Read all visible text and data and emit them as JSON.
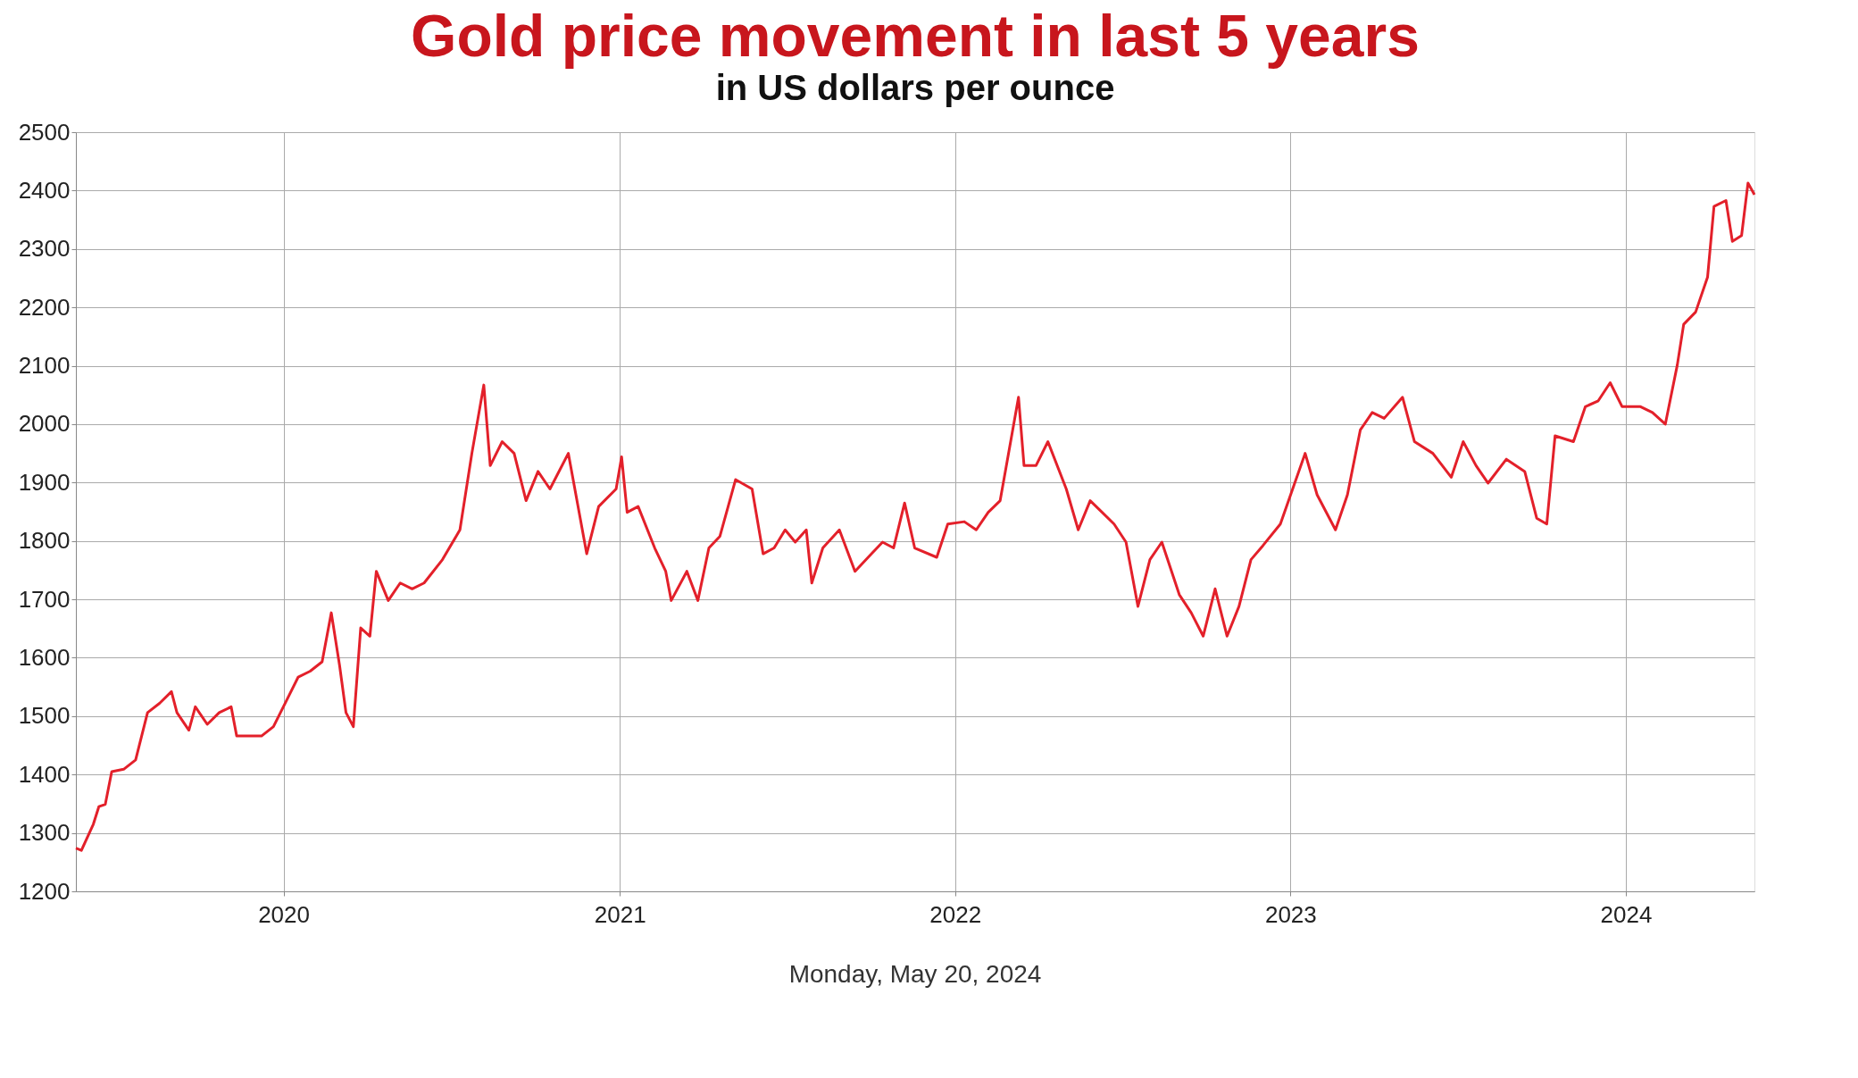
{
  "chart_data": {
    "type": "line",
    "title": "Gold price movement in last 5 years",
    "subtitle": "in US dollars per ounce",
    "annotations": [
      "Monday, May 20, 2024"
    ],
    "x": [
      "2019-05-20",
      "2019-05-26",
      "2019-06-08",
      "2019-06-14",
      "2019-06-21",
      "2019-06-28",
      "2019-07-11",
      "2019-07-24",
      "2019-08-06",
      "2019-08-19",
      "2019-09-01",
      "2019-09-07",
      "2019-09-20",
      "2019-09-27",
      "2019-10-10",
      "2019-10-23",
      "2019-11-05",
      "2019-11-11",
      "2019-12-08",
      "2019-12-21",
      "2020-01-04",
      "2020-01-17",
      "2020-01-30",
      "2020-02-12",
      "2020-02-22",
      "2020-03-02",
      "2020-03-09",
      "2020-03-17",
      "2020-03-25",
      "2020-04-04",
      "2020-04-11",
      "2020-04-24",
      "2020-05-07",
      "2020-05-20",
      "2020-06-02",
      "2020-06-22",
      "2020-07-11",
      "2020-07-24",
      "2020-08-06",
      "2020-08-13",
      "2020-08-26",
      "2020-09-08",
      "2020-09-21",
      "2020-10-04",
      "2020-10-17",
      "2020-11-06",
      "2020-11-26",
      "2020-12-09",
      "2020-12-28",
      "2021-01-03",
      "2021-01-09",
      "2021-01-21",
      "2021-02-08",
      "2021-02-20",
      "2021-02-26",
      "2021-03-15",
      "2021-03-27",
      "2021-04-08",
      "2021-04-20",
      "2021-05-07",
      "2021-05-25",
      "2021-06-06",
      "2021-06-18",
      "2021-06-30",
      "2021-07-11",
      "2021-07-23",
      "2021-07-29",
      "2021-08-10",
      "2021-08-28",
      "2021-09-14",
      "2021-10-02",
      "2021-10-14",
      "2021-10-26",
      "2021-11-07",
      "2021-11-18",
      "2021-12-12",
      "2021-12-24",
      "2022-01-11",
      "2022-01-24",
      "2022-02-06",
      "2022-02-19",
      "2022-03-11",
      "2022-03-17",
      "2022-03-30",
      "2022-04-12",
      "2022-05-02",
      "2022-05-15",
      "2022-05-28",
      "2022-06-10",
      "2022-06-23",
      "2022-07-06",
      "2022-07-19",
      "2022-08-01",
      "2022-08-14",
      "2022-09-02",
      "2022-09-15",
      "2022-09-28",
      "2022-10-11",
      "2022-10-24",
      "2022-11-06",
      "2022-11-19",
      "2022-12-02",
      "2022-12-21",
      "2023-01-17",
      "2023-01-30",
      "2023-02-19",
      "2023-03-04",
      "2023-03-18",
      "2023-03-31",
      "2023-04-13",
      "2023-05-03",
      "2023-05-16",
      "2023-06-05",
      "2023-06-25",
      "2023-07-08",
      "2023-07-22",
      "2023-08-04",
      "2023-08-24",
      "2023-09-13",
      "2023-09-26",
      "2023-10-07",
      "2023-10-16",
      "2023-11-05",
      "2023-11-18",
      "2023-12-02",
      "2023-12-15",
      "2023-12-28",
      "2024-01-17",
      "2024-01-30",
      "2024-02-13",
      "2024-02-26",
      "2024-03-04",
      "2024-03-17",
      "2024-03-30",
      "2024-04-06",
      "2024-04-19",
      "2024-04-26",
      "2024-05-06",
      "2024-05-13",
      "2024-05-20"
    ],
    "series": [
      {
        "color": "#e3202a",
        "values": [
          1274,
          1270,
          1315,
          1345,
          1349,
          1405,
          1409,
          1425,
          1506,
          1522,
          1542,
          1506,
          1476,
          1516,
          1486,
          1506,
          1516,
          1466,
          1466,
          1482,
          1526,
          1567,
          1577,
          1593,
          1677,
          1587,
          1506,
          1482,
          1651,
          1637,
          1748,
          1698,
          1728,
          1718,
          1728,
          1768,
          1819,
          1950,
          2067,
          1929,
          1970,
          1950,
          1869,
          1919,
          1889,
          1950,
          1778,
          1859,
          1889,
          1944,
          1849,
          1859,
          1788,
          1748,
          1698,
          1748,
          1698,
          1788,
          1808,
          1905,
          1889,
          1778,
          1788,
          1819,
          1798,
          1819,
          1728,
          1788,
          1819,
          1748,
          1778,
          1798,
          1788,
          1865,
          1788,
          1772,
          1829,
          1833,
          1819,
          1849,
          1869,
          2046,
          1929,
          1929,
          1970,
          1889,
          1819,
          1869,
          1849,
          1829,
          1798,
          1688,
          1768,
          1798,
          1708,
          1677,
          1637,
          1718,
          1637,
          1688,
          1768,
          1792,
          1829,
          1950,
          1879,
          1819,
          1879,
          1990,
          2020,
          2010,
          2046,
          1970,
          1950,
          1909,
          1970,
          1929,
          1899,
          1940,
          1919,
          1839,
          1829,
          1980,
          1970,
          2030,
          2040,
          2071,
          2030,
          2030,
          2020,
          2000,
          2101,
          2171,
          2192,
          2252,
          2373,
          2383,
          2313,
          2323,
          2413,
          2393
        ]
      }
    ],
    "xlim": [
      "2019-05-20",
      "2024-05-20"
    ],
    "xticks": [
      {
        "value": "2020-01-01",
        "label": "2020"
      },
      {
        "value": "2021-01-01",
        "label": "2021"
      },
      {
        "value": "2022-01-01",
        "label": "2022"
      },
      {
        "value": "2023-01-01",
        "label": "2023"
      },
      {
        "value": "2024-01-01",
        "label": "2024"
      }
    ],
    "ylim": [
      1200,
      2500
    ],
    "yticks": [
      1200,
      1300,
      1400,
      1500,
      1600,
      1700,
      1800,
      1900,
      2000,
      2100,
      2200,
      2300,
      2400,
      2500
    ],
    "grid": true,
    "marker": "none",
    "line_style": "solid"
  }
}
